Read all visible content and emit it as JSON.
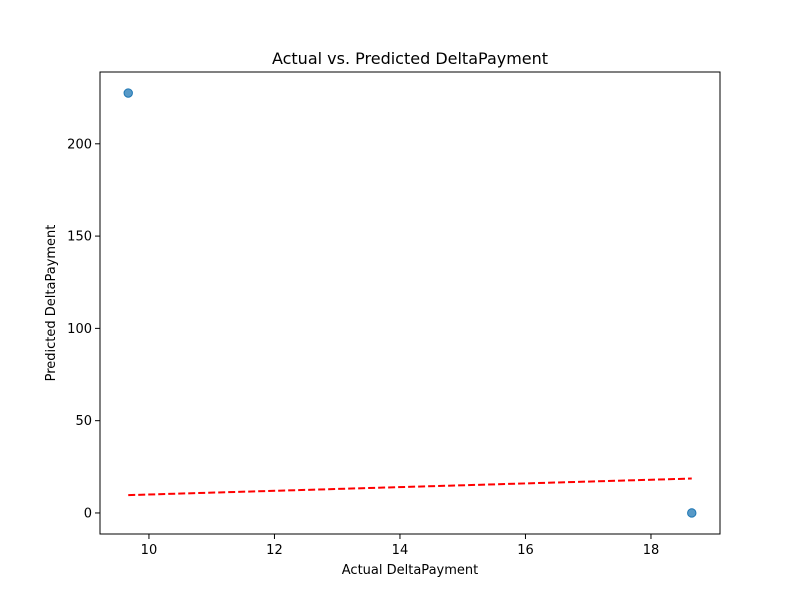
{
  "chart_data": {
    "type": "scatter",
    "title": "Actual vs. Predicted DeltaPayment",
    "xlabel": "Actual DeltaPayment",
    "ylabel": "Predicted DeltaPayment",
    "xlim": [
      9.22,
      19.1
    ],
    "ylim": [
      -11.4,
      238.9
    ],
    "xticks": [
      10,
      12,
      14,
      16,
      18
    ],
    "yticks": [
      0,
      50,
      100,
      150,
      200
    ],
    "grid": false,
    "series": [
      {
        "kind": "scatter",
        "color": "#1f77b4",
        "points": [
          {
            "x": 9.67,
            "y": 227.5
          },
          {
            "x": 18.65,
            "y": 0.0
          }
        ]
      },
      {
        "kind": "reference-line",
        "style": "dashed",
        "color": "#ff0000",
        "points": [
          {
            "x": 9.67,
            "y": 9.67
          },
          {
            "x": 18.65,
            "y": 18.65
          }
        ]
      }
    ]
  }
}
